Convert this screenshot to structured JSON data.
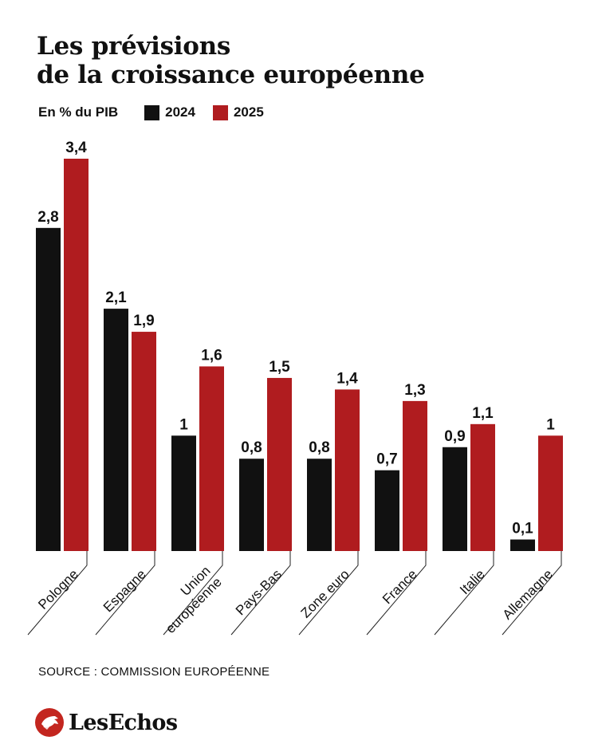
{
  "header": {
    "title_line1": "Les prévisions",
    "title_line2": "de la croissance européenne"
  },
  "legend": {
    "unit": "En % du PIB",
    "items": [
      {
        "label": "2024",
        "color": "#111111"
      },
      {
        "label": "2025",
        "color": "#b01c1f"
      }
    ]
  },
  "chart_data": {
    "type": "bar",
    "title": "Les prévisions de la croissance européenne",
    "ylabel": "En % du PIB",
    "categories": [
      "Pologne",
      "Espagne",
      "Union\neuropéenne",
      "Pays-Bas",
      "Zone euro",
      "France",
      "Italie",
      "Allemagne"
    ],
    "series": [
      {
        "name": "2024",
        "color": "#111111",
        "values": [
          2.8,
          2.1,
          1,
          0.8,
          0.8,
          0.7,
          0.9,
          0.1
        ],
        "labels": [
          "2,8",
          "2,1",
          "1",
          "0,8",
          "0,8",
          "0,7",
          "0,9",
          "0,1"
        ]
      },
      {
        "name": "2025",
        "color": "#b01c1f",
        "values": [
          3.4,
          1.9,
          1.6,
          1.5,
          1.4,
          1.3,
          1.1,
          1
        ],
        "labels": [
          "3,4",
          "1,9",
          "1,6",
          "1,5",
          "1,4",
          "1,3",
          "1,1",
          "1"
        ]
      }
    ],
    "ylim": [
      0,
      3.4
    ],
    "grid": false,
    "legend_position": "top-left"
  },
  "footer": {
    "source": "SOURCE : COMMISSION EUROPÉENNE",
    "brand": "LesEchos"
  }
}
